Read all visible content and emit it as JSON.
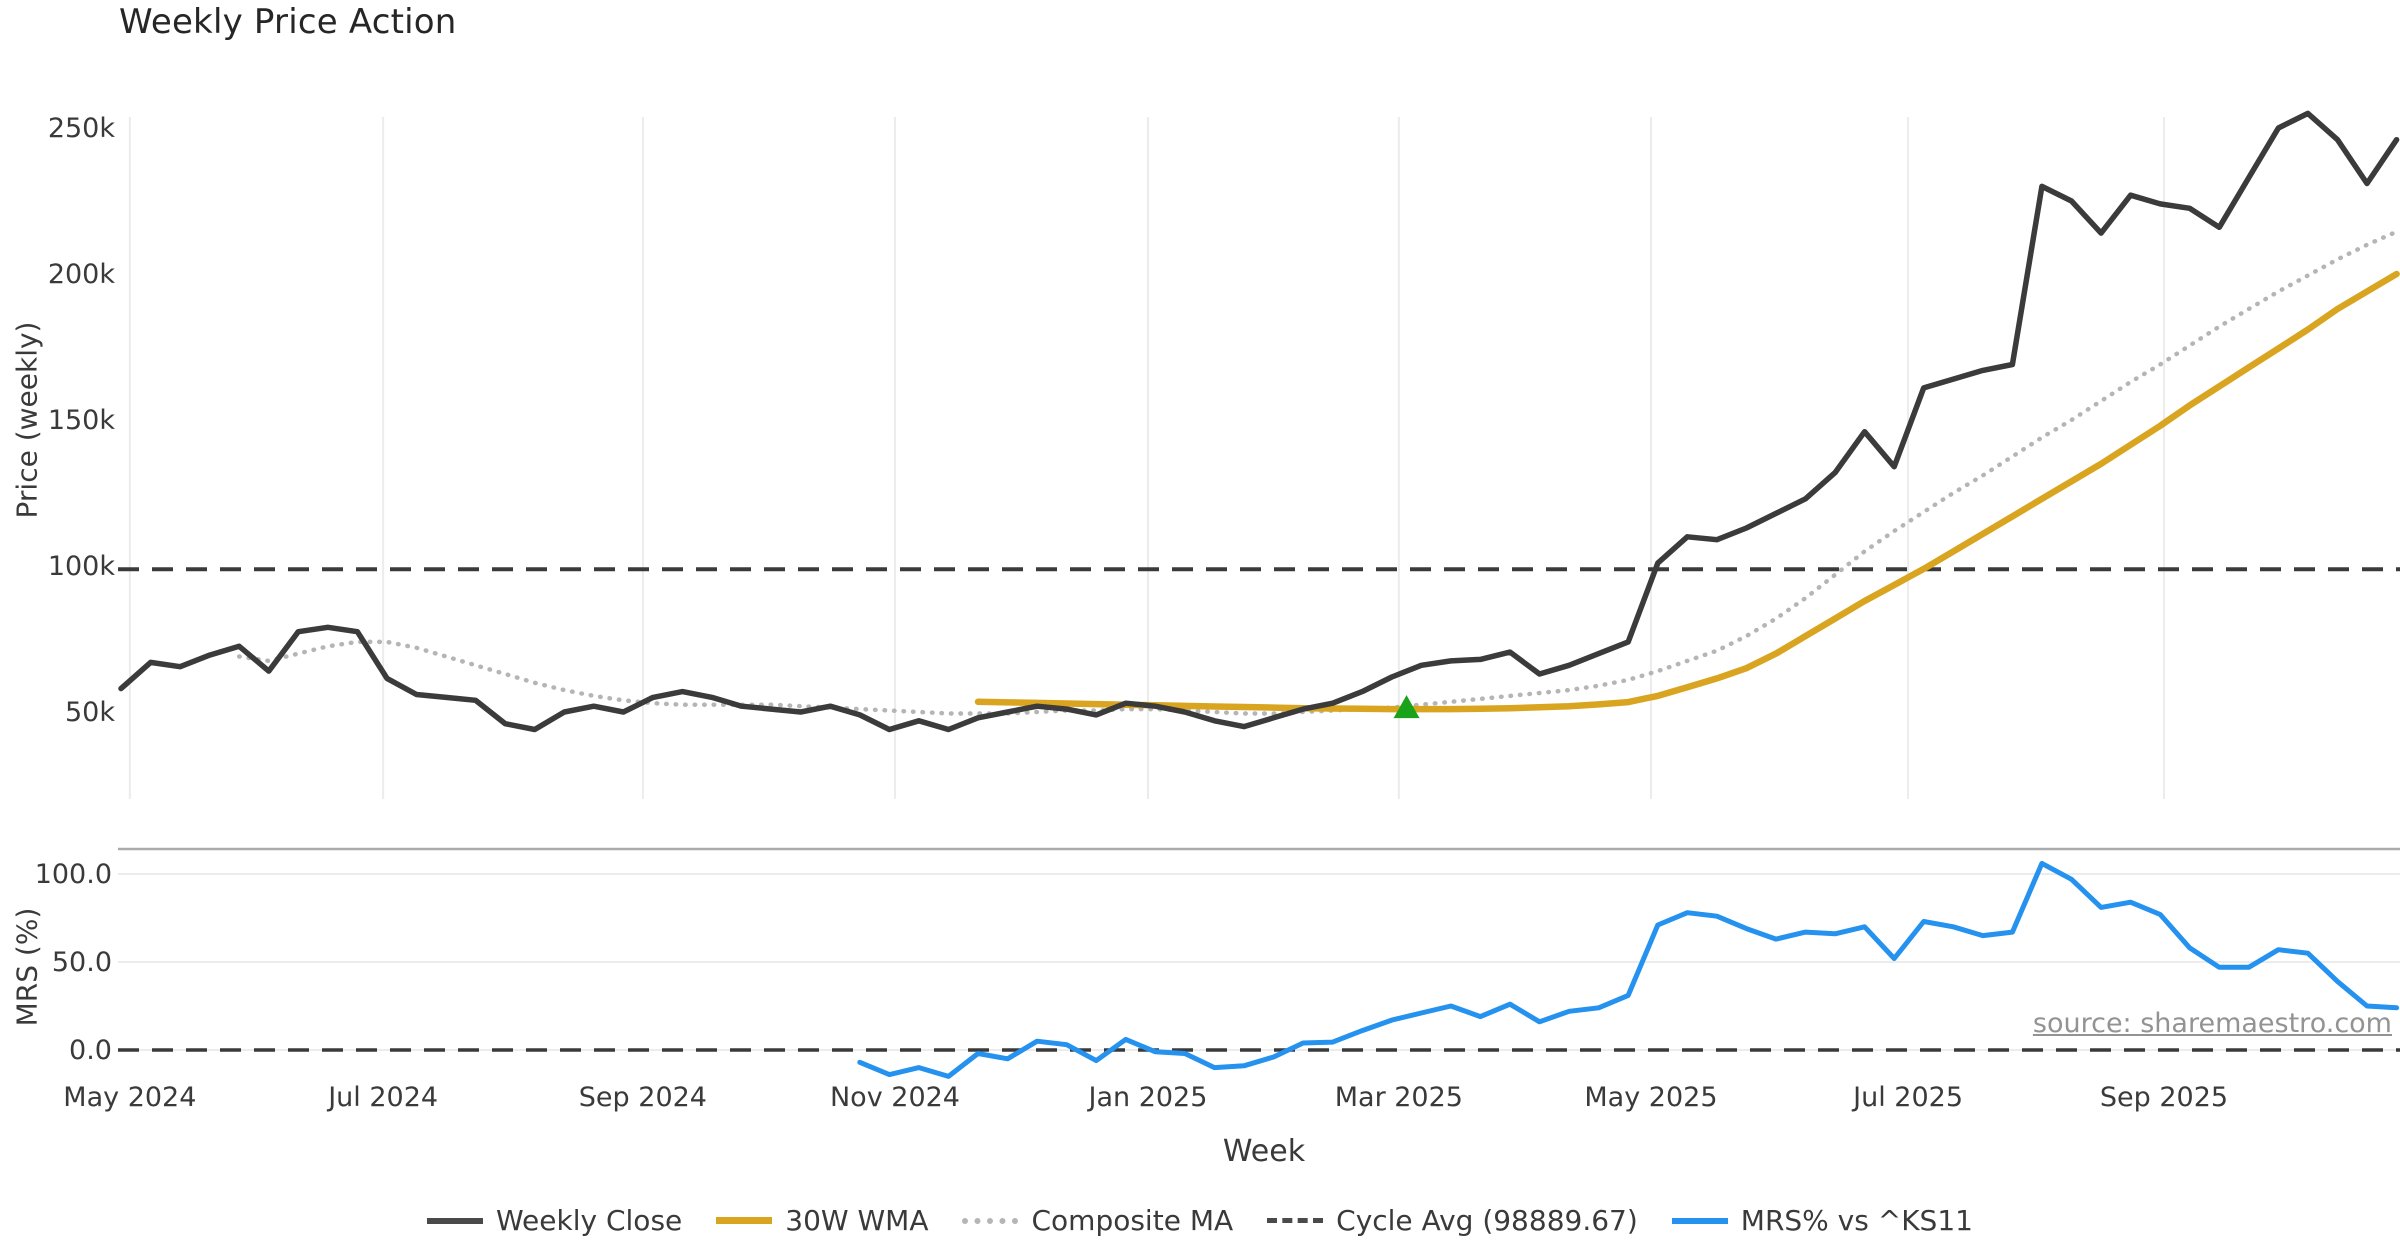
{
  "title": "Weekly Price Action",
  "watermark": {
    "text": "source: sharemaestro.com"
  },
  "colors": {
    "weekly_close": "#3b3b3b",
    "wma_30w": "#d9a521",
    "composite_ma": "#b5b5b5",
    "cycle_avg": "#3a3a3a",
    "mrs": "#2492ee",
    "signal_marker": "#1aa31a",
    "gridline": "#ececec",
    "panel_spine": "#ababab"
  },
  "legend": {
    "items": [
      {
        "label": "Weekly Close",
        "style": "solid-dark"
      },
      {
        "label": "30W WMA",
        "style": "solid-gold"
      },
      {
        "label": "Composite MA",
        "style": "dotted-gray"
      },
      {
        "label": "Cycle Avg (98889.67)",
        "style": "dashed-dark"
      },
      {
        "label": "MRS% vs ^KS11",
        "style": "solid-blue"
      }
    ]
  },
  "axes": {
    "x": {
      "label": "Week",
      "ticks": [
        {
          "week_index": 0.3,
          "label": "May 2024"
        },
        {
          "week_index": 8.87,
          "label": "Jul 2024"
        },
        {
          "week_index": 17.66,
          "label": "Sep 2024"
        },
        {
          "week_index": 26.19,
          "label": "Nov 2024"
        },
        {
          "week_index": 34.75,
          "label": "Jan 2025"
        },
        {
          "week_index": 43.24,
          "label": "Mar 2025"
        },
        {
          "week_index": 51.77,
          "label": "May 2025"
        },
        {
          "week_index": 60.47,
          "label": "Jul 2025"
        },
        {
          "week_index": 69.13,
          "label": "Sep 2025"
        }
      ]
    },
    "price": {
      "label": "Price (weekly)",
      "ticks": [
        {
          "value": 50,
          "label": "50k"
        },
        {
          "value": 100,
          "label": "100k"
        },
        {
          "value": 150,
          "label": "150k"
        },
        {
          "value": 200,
          "label": "200k"
        },
        {
          "value": 250,
          "label": "250k"
        }
      ]
    },
    "mrs": {
      "label": "MRS (%)",
      "ticks": [
        {
          "value": 0,
          "label": "0.0"
        },
        {
          "value": 50,
          "label": "50.0"
        },
        {
          "value": 100,
          "label": "100.0"
        }
      ]
    }
  },
  "chart_data": [
    {
      "type": "line",
      "title": "Weekly Price Action",
      "xlabel": "Week",
      "ylabel": "Price (weekly)",
      "values_unit": "thousands",
      "ylim_thousands": [
        20,
        257
      ],
      "grid": "vertical-months-only",
      "x_unit": "weeks from late Apr 2024",
      "cycle_avg_value": 98889.67,
      "series": [
        {
          "name": "Weekly Close",
          "start_week": 0,
          "values": [
            58,
            67,
            65.5,
            69.5,
            72.5,
            64,
            77.5,
            79,
            77.5,
            61.5,
            56,
            55,
            54,
            46,
            44,
            50,
            52,
            50,
            55,
            57,
            55,
            52,
            51,
            50,
            52,
            49,
            44,
            47,
            44,
            48,
            50,
            52,
            51,
            49,
            53,
            52,
            50,
            47,
            45,
            48,
            51,
            53,
            57,
            62,
            66,
            67.5,
            68,
            70.5,
            63,
            66,
            70,
            74,
            101,
            110,
            109,
            113,
            118,
            123,
            132,
            146,
            134,
            161,
            164,
            167,
            169,
            230,
            225,
            214,
            227,
            224,
            222.5,
            216,
            233,
            250,
            255,
            246,
            231,
            246
          ]
        },
        {
          "name": "30W WMA",
          "start_week": 29,
          "values": [
            53.5,
            53.3,
            53.1,
            52.9,
            52.7,
            52.5,
            52.3,
            52.1,
            51.9,
            51.7,
            51.5,
            51.3,
            51.2,
            51.1,
            51.0,
            51.0,
            51.0,
            51.1,
            51.3,
            51.6,
            52.0,
            52.6,
            53.4,
            55.5,
            58.5,
            61.5,
            65,
            70,
            76,
            82,
            88,
            93.5,
            99,
            105,
            111,
            117,
            123,
            129,
            135,
            141.5,
            148,
            155,
            161.5,
            168,
            174.5,
            181,
            188,
            194,
            200
          ]
        },
        {
          "name": "Composite MA",
          "start_week": 4,
          "values": [
            69,
            67.5,
            70,
            72.5,
            74,
            74,
            72,
            69,
            66,
            63,
            60,
            57.5,
            55.5,
            54,
            53,
            52.5,
            52.5,
            52.5,
            52.5,
            52,
            51.5,
            51,
            50.5,
            50,
            49.5,
            49.5,
            49.5,
            50,
            50.5,
            50.5,
            51,
            51,
            50.5,
            50,
            49.5,
            49.5,
            50,
            50.5,
            51,
            51.5,
            52.5,
            53.5,
            54.5,
            55.5,
            56.5,
            57.5,
            59,
            61,
            64,
            67.5,
            71,
            76,
            82,
            89,
            97,
            105,
            112,
            118.5,
            125,
            131,
            137.5,
            144,
            150,
            156.5,
            163,
            169,
            175.5,
            182,
            188,
            194,
            199.5,
            205,
            210,
            214.5
          ]
        }
      ],
      "signal_marker": {
        "shape": "triangle-up",
        "week_index": 43.5,
        "value_thousands": 51
      }
    },
    {
      "type": "line",
      "ylabel": "MRS (%)",
      "ylim": [
        -20,
        115
      ],
      "zero_line": "dashed",
      "grid": "horizontal-only",
      "series": [
        {
          "name": "MRS% vs ^KS11",
          "start_week": 25,
          "values": [
            -7,
            -14,
            -10,
            -15,
            -2,
            -5,
            5,
            3,
            -6,
            6,
            -1,
            -2,
            -10,
            -9,
            -4,
            4,
            4.5,
            11,
            17,
            21,
            25,
            19,
            26,
            16,
            22,
            24,
            31,
            71,
            78,
            76,
            69,
            63,
            67,
            66,
            70,
            52,
            73,
            70,
            65,
            67,
            106,
            97,
            81,
            84,
            77,
            58,
            47,
            47,
            57,
            55,
            39,
            25,
            24
          ]
        }
      ]
    }
  ]
}
